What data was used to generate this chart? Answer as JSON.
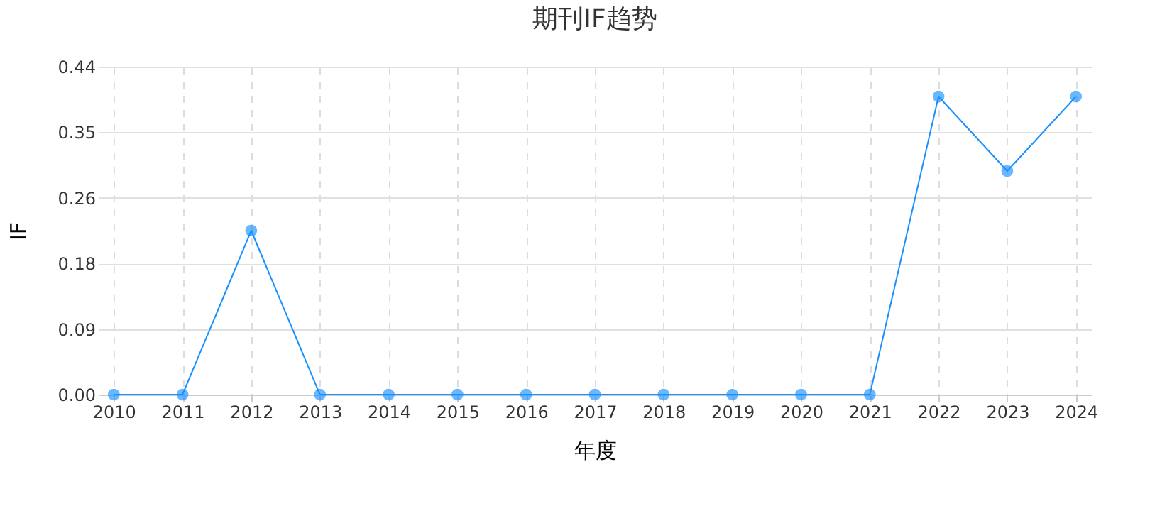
{
  "chart_data": {
    "type": "line",
    "title": "期刊IF趋势",
    "xlabel": "年度",
    "ylabel": "IF",
    "categories": [
      "2010",
      "2011",
      "2012",
      "2013",
      "2014",
      "2015",
      "2016",
      "2017",
      "2018",
      "2019",
      "2020",
      "2021",
      "2022",
      "2023",
      "2024"
    ],
    "series": [
      {
        "color": "#1890ff",
        "values": [
          0,
          0,
          0.22,
          0,
          0,
          0,
          0,
          0,
          0,
          0,
          0,
          0,
          0.4,
          0.3,
          0.4
        ]
      }
    ],
    "ylim": [
      0,
      0.44
    ],
    "yticks": [
      {
        "value": 0,
        "label": "0.00"
      },
      {
        "value": 0.088,
        "label": "0.09"
      },
      {
        "value": 0.176,
        "label": "0.18"
      },
      {
        "value": 0.264,
        "label": "0.26"
      },
      {
        "value": 0.352,
        "label": "0.35"
      },
      {
        "value": 0.44,
        "label": "0.44"
      }
    ],
    "grid": true,
    "marker": "circle",
    "line_style": "solid"
  }
}
